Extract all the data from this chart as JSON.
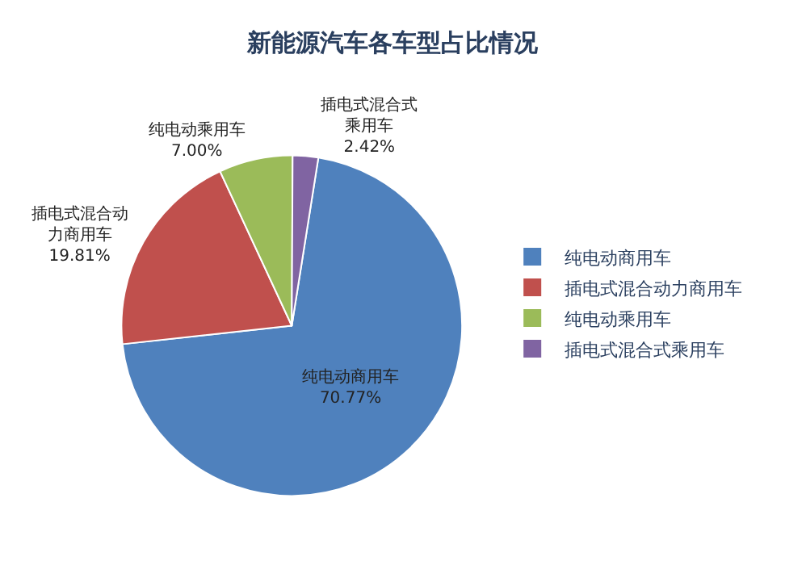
{
  "chart_data": {
    "type": "pie",
    "title": "新能源汽车各车型占比情况",
    "categories": [
      "纯电动商用车",
      "插电式混合动力商用车",
      "纯电动乘用车",
      "插电式混合式乘用车"
    ],
    "values": [
      70.77,
      19.81,
      7.0,
      2.42
    ],
    "value_labels": [
      "纯电动商用车\n70.77%",
      "插电式混合动力商用车\n19.81%",
      "纯电动乘用车\n7.00%",
      "插电式混合式乘用车\n2.42%"
    ],
    "colors": [
      "#4f81bd",
      "#c0504d",
      "#9bbb59",
      "#8064a2"
    ],
    "legend": "right"
  }
}
